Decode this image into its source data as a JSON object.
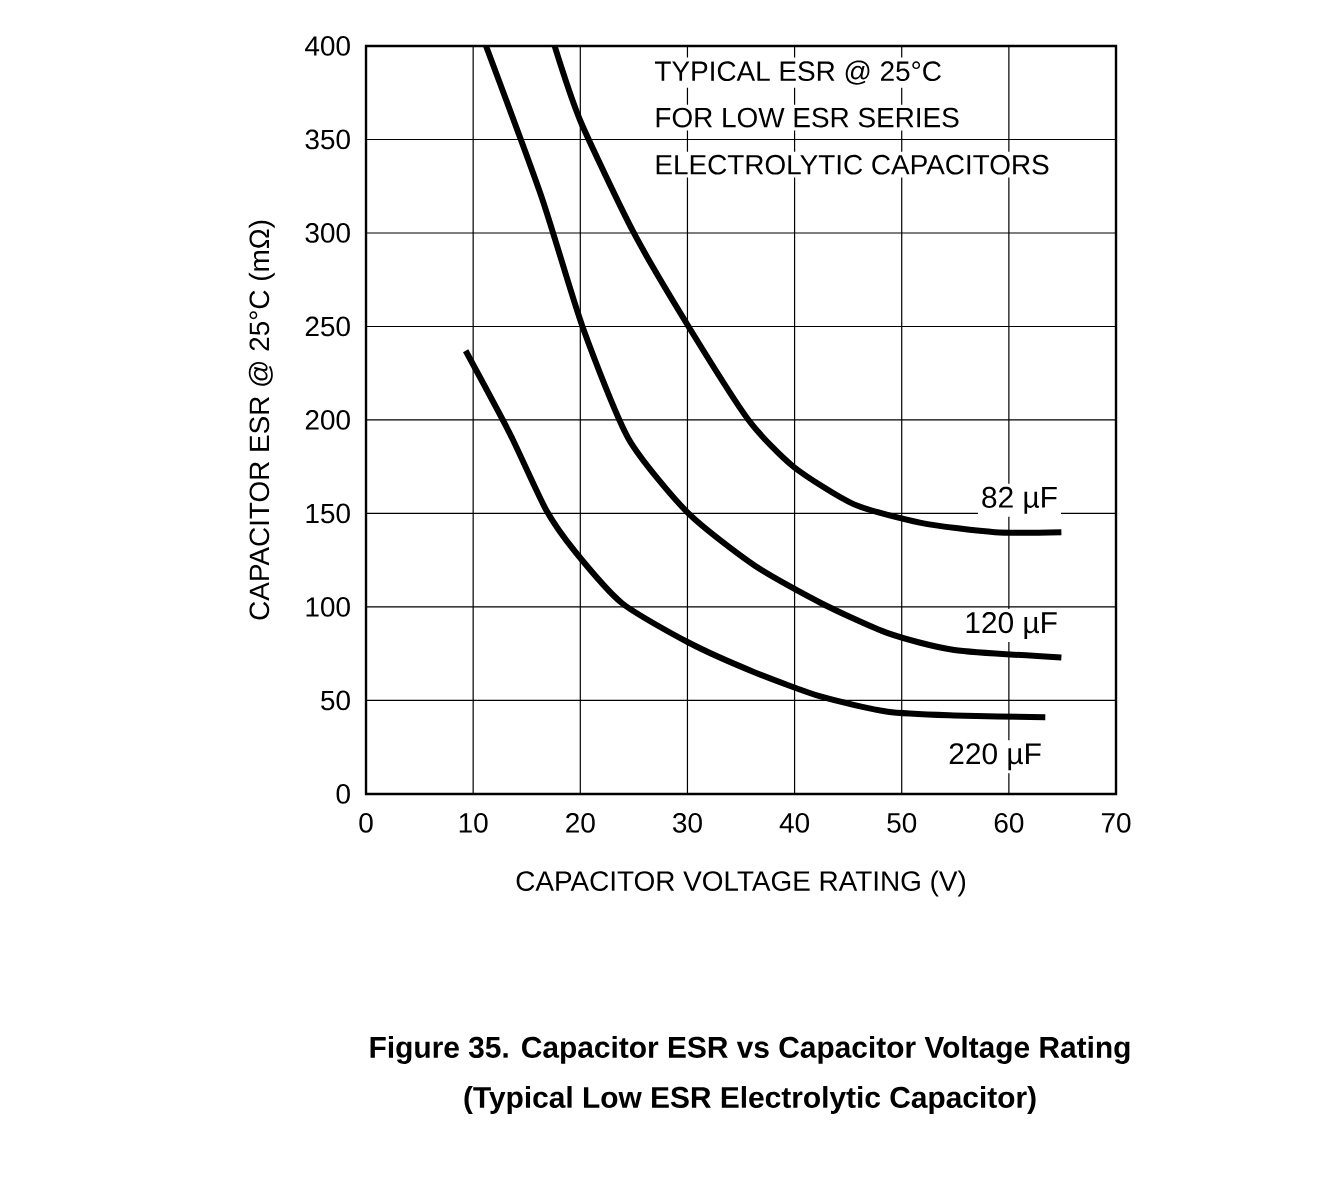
{
  "chart_data": {
    "type": "line",
    "title": "Figure 35. Capacitor ESR vs Capacitor Voltage Rating",
    "subtitle": "(Typical Low ESR Electrolytic Capacitor)",
    "xlabel": "CAPACITOR VOLTAGE RATING (V)",
    "ylabel": "CAPACITOR ESR @ 25°C (mΩ)",
    "annotations": [
      "TYPICAL ESR @ 25°C",
      "FOR LOW ESR SERIES",
      "ELECTROLYTIC CAPACITORS"
    ],
    "series": [
      {
        "name": "82 µF",
        "color": "#000000",
        "x": [
          17.6,
          20,
          25,
          30.1,
          35.7,
          39.9,
          45.5,
          51.8,
          58.7,
          64.9
        ],
        "values": [
          400,
          360,
          300,
          250,
          200,
          175,
          155,
          145,
          140,
          140
        ]
      },
      {
        "name": "120 µF",
        "color": "#000000",
        "x": [
          11.2,
          16.4,
          20.2,
          24.5,
          30.1,
          36.3,
          42.5,
          48.7,
          54.9,
          64.9
        ],
        "values": [
          400,
          319,
          250,
          190,
          150,
          122,
          102,
          86,
          77,
          73
        ]
      },
      {
        "name": "220 µF",
        "color": "#000000",
        "x": [
          9.3,
          13.4,
          16.8,
          19.6,
          23.9,
          30.1,
          36.3,
          42.5,
          48.7,
          54.9,
          63.4
        ],
        "values": [
          237,
          193,
          152,
          129,
          102,
          81,
          65,
          52,
          44,
          42,
          41
        ]
      }
    ],
    "xlim": [
      0,
      70
    ],
    "xticks": [
      0,
      10,
      20,
      30,
      40,
      50,
      60,
      70
    ],
    "ylim": [
      0,
      400
    ],
    "yticks": [
      0,
      50,
      100,
      150,
      200,
      250,
      300,
      350,
      400
    ],
    "grid": true,
    "marker": "none",
    "line_style": "solid"
  }
}
